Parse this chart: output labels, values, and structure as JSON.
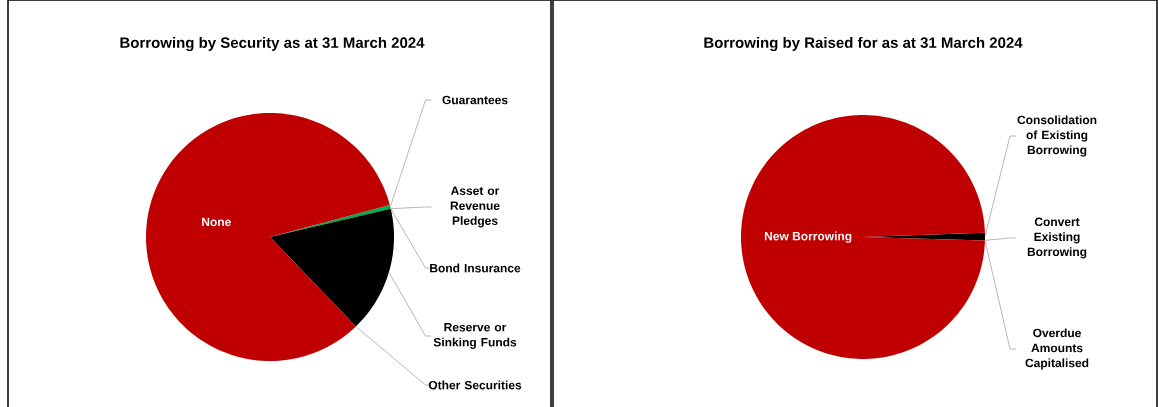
{
  "chart_data": [
    {
      "type": "pie",
      "title": "Borrowing by Security as at 31 March 2024",
      "categories": [
        "Guarantees",
        "Asset or Revenue Pledges",
        "Bond Insurance",
        "Reserve or Sinking Funds",
        "Other Securities",
        "None"
      ],
      "values": [
        0.5,
        0,
        0,
        16.5,
        0,
        83
      ],
      "colors": [
        "#00b050",
        "#7f7f7f",
        "#4472c4",
        "#000000",
        "#ffc000",
        "#c00000"
      ]
    },
    {
      "type": "pie",
      "title": "Borrowing by Raised for as at 31 March 2024",
      "categories": [
        "Consolidation of Existing Borrowing",
        "Convert Existing Borrowing",
        "Overdue Amounts Capitalised",
        "New Borrowing"
      ],
      "values": [
        1,
        0,
        0,
        99
      ],
      "colors": [
        "#000000",
        "#7f7f7f",
        "#4472c4",
        "#c00000"
      ]
    }
  ]
}
